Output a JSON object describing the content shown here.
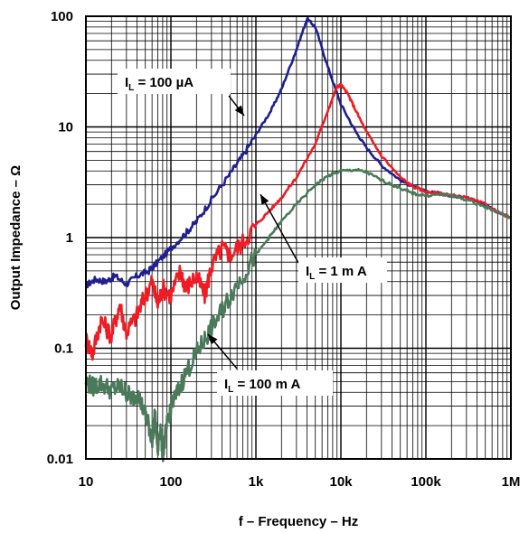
{
  "chart_data": {
    "type": "line",
    "title": "",
    "xlabel": "f – Frequency – Hz",
    "ylabel": "Output Impedance – Ω",
    "xscale": "log",
    "yscale": "log",
    "xlim": [
      10,
      1000000
    ],
    "ylim": [
      0.01,
      100
    ],
    "grid": true,
    "x_ticks": [
      {
        "value": 10,
        "label": "10"
      },
      {
        "value": 100,
        "label": "100"
      },
      {
        "value": 1000,
        "label": "1k"
      },
      {
        "value": 10000,
        "label": "10k"
      },
      {
        "value": 100000,
        "label": "100k"
      },
      {
        "value": 1000000,
        "label": "1M"
      }
    ],
    "y_ticks": [
      {
        "value": 0.01,
        "label": "0.01"
      },
      {
        "value": 0.1,
        "label": "0.1"
      },
      {
        "value": 1,
        "label": "1"
      },
      {
        "value": 10,
        "label": "10"
      },
      {
        "value": 100,
        "label": "100"
      }
    ],
    "series": [
      {
        "name": "IL = 100 µA",
        "label_main": "I",
        "label_sub": "L",
        "label_rest": " = 100 µA",
        "color": "#1f1f8f",
        "x": [
          10,
          13,
          17,
          22,
          30,
          40,
          55,
          70,
          100,
          150,
          200,
          300,
          500,
          700,
          1000,
          1500,
          2000,
          3000,
          4000,
          5000,
          7000,
          10000,
          15000,
          20000,
          30000,
          50000,
          70000,
          100000,
          150000,
          200000,
          300000,
          500000,
          700000,
          1000000
        ],
        "y": [
          0.37,
          0.42,
          0.4,
          0.45,
          0.38,
          0.45,
          0.5,
          0.6,
          0.8,
          1.1,
          1.4,
          2.2,
          3.8,
          5.5,
          8.5,
          14,
          22,
          50,
          95,
          80,
          35,
          16,
          9,
          6.5,
          4.5,
          3.3,
          2.9,
          2.6,
          2.5,
          2.4,
          2.3,
          2.0,
          1.7,
          1.5
        ]
      },
      {
        "name": "IL = 1 mA",
        "label_main": "I",
        "label_sub": "L",
        "label_rest": " = 1 m A",
        "color": "#ee1c24",
        "x": [
          10,
          12,
          15,
          20,
          25,
          30,
          40,
          50,
          60,
          70,
          80,
          100,
          130,
          150,
          200,
          250,
          300,
          400,
          500,
          700,
          1000,
          1500,
          2000,
          3000,
          5000,
          7000,
          9000,
          10000,
          12000,
          15000,
          20000,
          30000,
          50000,
          70000,
          100000,
          150000,
          200000,
          300000,
          500000,
          700000,
          1000000
        ],
        "y": [
          0.12,
          0.09,
          0.18,
          0.13,
          0.25,
          0.14,
          0.2,
          0.3,
          0.4,
          0.25,
          0.35,
          0.3,
          0.5,
          0.35,
          0.45,
          0.3,
          0.55,
          0.8,
          0.7,
          0.9,
          1.3,
          1.8,
          2.3,
          3.5,
          7,
          14,
          23,
          24,
          20,
          14,
          9,
          5.5,
          3.5,
          2.9,
          2.6,
          2.5,
          2.4,
          2.3,
          2.0,
          1.7,
          1.5
        ]
      },
      {
        "name": "IL = 100 mA",
        "label_main": "I",
        "label_sub": "L",
        "label_rest": " = 100 m A",
        "color": "#4a7a5a",
        "x": [
          10,
          12,
          15,
          20,
          25,
          30,
          35,
          40,
          50,
          55,
          60,
          65,
          70,
          75,
          80,
          90,
          100,
          120,
          150,
          200,
          250,
          300,
          400,
          500,
          700,
          1000,
          1500,
          2000,
          3000,
          5000,
          7000,
          10000,
          15000,
          20000,
          30000,
          50000,
          70000,
          100000,
          150000,
          200000,
          300000,
          500000,
          700000,
          1000000
        ],
        "y": [
          0.05,
          0.045,
          0.048,
          0.042,
          0.045,
          0.04,
          0.035,
          0.04,
          0.025,
          0.02,
          0.015,
          0.025,
          0.012,
          0.02,
          0.011,
          0.02,
          0.03,
          0.04,
          0.06,
          0.09,
          0.12,
          0.15,
          0.22,
          0.3,
          0.45,
          0.7,
          1.05,
          1.4,
          2.0,
          3.0,
          3.6,
          4.0,
          4.1,
          3.9,
          3.3,
          2.8,
          2.5,
          2.4,
          2.45,
          2.4,
          2.2,
          1.9,
          1.7,
          1.5
        ]
      }
    ],
    "annotations": [
      {
        "series": 0,
        "box_x": 130,
        "box_y": 76,
        "box_w": 125,
        "box_h": 28,
        "arrow_from": [
          253,
          106
        ],
        "arrow_to": [
          270,
          128
        ]
      },
      {
        "series": 1,
        "box_x": 330,
        "box_y": 285,
        "box_w": 98,
        "box_h": 28,
        "arrow_from": [
          330,
          291
        ],
        "arrow_to": [
          288,
          215
        ]
      },
      {
        "series": 2,
        "box_x": 240,
        "box_y": 410,
        "box_w": 128,
        "box_h": 28,
        "arrow_from": [
          262,
          408
        ],
        "arrow_to": [
          230,
          370
        ]
      }
    ]
  }
}
